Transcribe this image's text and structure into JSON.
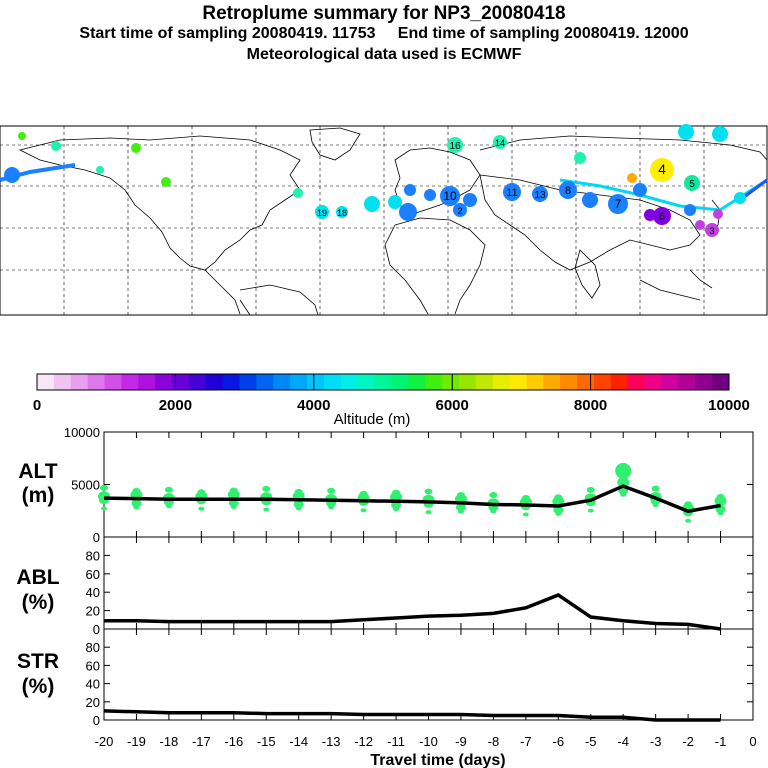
{
  "header": {
    "title": "Retroplume summary for NP3_20080418",
    "sampling_line": "Start time of sampling 20080419. 11753     End time of sampling 20080419. 12000",
    "met_line": "Meteorological data used is ECMWF"
  },
  "colorbar": {
    "tick_labels": [
      "0",
      "2000",
      "4000",
      "6000",
      "8000",
      "10000"
    ],
    "label": "Altitude (m)",
    "colors": [
      "#f6e6f8",
      "#efc4f2",
      "#e8a0ee",
      "#df78ea",
      "#d350e8",
      "#c428e6",
      "#ae10e2",
      "#8c00dc",
      "#6a00d8",
      "#4400d6",
      "#2000d6",
      "#0818e0",
      "#0040ea",
      "#0066f0",
      "#0088f4",
      "#00a8f8",
      "#00c4fa",
      "#00dcf8",
      "#00eee6",
      "#00f6c0",
      "#00f69a",
      "#00f474",
      "#10f040",
      "#40ee10",
      "#70ea00",
      "#98e600",
      "#c0e800",
      "#e6ee00",
      "#ffea00",
      "#ffcc00",
      "#ffaa00",
      "#ff8a00",
      "#ff6a00",
      "#ff4400",
      "#ff2000",
      "#ff0058",
      "#f00088",
      "#d000a0",
      "#b00098",
      "#900090",
      "#700080"
    ]
  },
  "map_markers": [
    {
      "label": "4",
      "color": "#ffee00"
    },
    {
      "label": "19",
      "color": "#00e0f0"
    },
    {
      "label": "18",
      "color": "#00e0f0"
    },
    {
      "label": "16",
      "color": "#20f0b0"
    },
    {
      "label": "14",
      "color": "#20f0b0"
    },
    {
      "label": "13",
      "color": "#1a80ff"
    },
    {
      "label": "11",
      "color": "#1a80ff"
    },
    {
      "label": "10",
      "color": "#1a80ff"
    },
    {
      "label": "8",
      "color": "#1a80ff"
    },
    {
      "label": "7",
      "color": "#1a80ff"
    },
    {
      "label": "6",
      "color": "#8000e0"
    },
    {
      "label": "5",
      "color": "#10e8a0"
    },
    {
      "label": "3",
      "color": "#c040e0"
    },
    {
      "label": "2",
      "color": "#1a80ff"
    }
  ],
  "chart_data": [
    {
      "type": "line",
      "panel": "ALT",
      "ylabel_top": "ALT",
      "ylabel_bottom": "(m)",
      "x": [
        -20,
        -19,
        -18,
        -17,
        -16,
        -15,
        -14,
        -13,
        -12,
        -11,
        -10,
        -9,
        -8,
        -7,
        -6,
        -5,
        -4,
        -3,
        -2,
        -1
      ],
      "values": [
        3700,
        3650,
        3600,
        3600,
        3600,
        3600,
        3550,
        3500,
        3450,
        3400,
        3350,
        3250,
        3100,
        3050,
        2950,
        3500,
        4850,
        3700,
        2450,
        3000
      ],
      "ylim": [
        0,
        10000
      ],
      "yticks": [
        "10000",
        "5000",
        "0"
      ],
      "scatter_color": "#30f070"
    },
    {
      "type": "line",
      "panel": "ABL",
      "ylabel_top": "ABL",
      "ylabel_bottom": "(%)",
      "x": [
        -20,
        -19,
        -18,
        -17,
        -16,
        -15,
        -14,
        -13,
        -12,
        -11,
        -10,
        -9,
        -8,
        -7,
        -6,
        -5,
        -4,
        -3,
        -2,
        -1
      ],
      "values": [
        9,
        9,
        8,
        8,
        8,
        8,
        8,
        8,
        10,
        12,
        14,
        15,
        17,
        23,
        37,
        13,
        9,
        6,
        5,
        0
      ],
      "ylim": [
        0,
        100
      ],
      "yticks": [
        "80",
        "60",
        "40",
        "20",
        "0"
      ]
    },
    {
      "type": "line",
      "panel": "STR",
      "ylabel_top": "STR",
      "ylabel_bottom": "(%)",
      "x": [
        -20,
        -19,
        -18,
        -17,
        -16,
        -15,
        -14,
        -13,
        -12,
        -11,
        -10,
        -9,
        -8,
        -7,
        -6,
        -5,
        -4,
        -3,
        -2,
        -1
      ],
      "values": [
        10,
        9,
        8,
        8,
        8,
        7,
        7,
        7,
        6,
        6,
        6,
        6,
        5,
        5,
        5,
        3,
        3,
        0,
        0,
        0
      ],
      "ylim": [
        0,
        100
      ],
      "yticks": [
        "80",
        "60",
        "40",
        "20",
        "0"
      ]
    }
  ],
  "x_axis": {
    "tick_labels": [
      "-20",
      "-19",
      "-18",
      "-17",
      "-16",
      "-15",
      "-14",
      "-13",
      "-12",
      "-11",
      "-10",
      "-9",
      "-8",
      "-7",
      "-6",
      "-5",
      "-4",
      "-3",
      "-2",
      "-1",
      "0"
    ],
    "label": "Travel time (days)"
  }
}
